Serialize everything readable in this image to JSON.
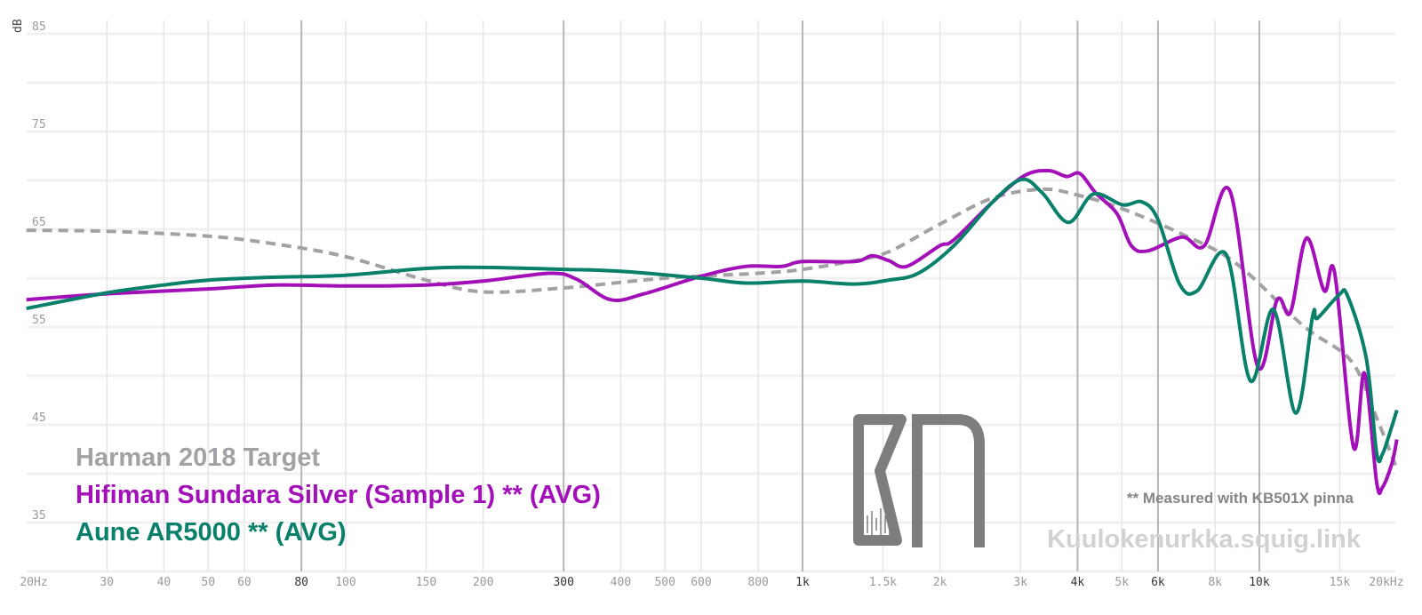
{
  "chart_data": {
    "type": "line",
    "title": "",
    "xlabel": "",
    "ylabel": "dB",
    "xscale": "log",
    "xlim": [
      20,
      20000
    ],
    "ylim": [
      30,
      85
    ],
    "grid": true,
    "y_ticks": [
      85,
      75,
      65,
      55,
      45,
      35
    ],
    "x_ticks": [
      {
        "value": 20,
        "label": "20Hz",
        "major": false
      },
      {
        "value": 30,
        "label": "30",
        "major": false
      },
      {
        "value": 40,
        "label": "40",
        "major": false
      },
      {
        "value": 50,
        "label": "50",
        "major": false
      },
      {
        "value": 60,
        "label": "60",
        "major": false
      },
      {
        "value": 80,
        "label": "80",
        "major": true
      },
      {
        "value": 100,
        "label": "100",
        "major": false
      },
      {
        "value": 150,
        "label": "150",
        "major": false
      },
      {
        "value": 200,
        "label": "200",
        "major": false
      },
      {
        "value": 300,
        "label": "300",
        "major": true
      },
      {
        "value": 400,
        "label": "400",
        "major": false
      },
      {
        "value": 500,
        "label": "500",
        "major": false
      },
      {
        "value": 600,
        "label": "600",
        "major": false
      },
      {
        "value": 800,
        "label": "800",
        "major": false
      },
      {
        "value": 1000,
        "label": "1k",
        "major": true
      },
      {
        "value": 1500,
        "label": "1.5k",
        "major": false
      },
      {
        "value": 2000,
        "label": "2k",
        "major": false
      },
      {
        "value": 3000,
        "label": "3k",
        "major": false
      },
      {
        "value": 4000,
        "label": "4k",
        "major": true
      },
      {
        "value": 5000,
        "label": "5k",
        "major": false
      },
      {
        "value": 6000,
        "label": "6k",
        "major": true
      },
      {
        "value": 8000,
        "label": "8k",
        "major": false
      },
      {
        "value": 10000,
        "label": "10k",
        "major": true
      },
      {
        "value": 15000,
        "label": "15k",
        "major": false
      },
      {
        "value": 20000,
        "label": "20kHz",
        "major": false
      }
    ],
    "legend_placement": "bottom-left",
    "series": [
      {
        "name": "Harman 2018 Target",
        "color": "#a3a1a5",
        "dashed": true,
        "points": [
          [
            20,
            64.9
          ],
          [
            30,
            64.8
          ],
          [
            50,
            64.3
          ],
          [
            70,
            63.5
          ],
          [
            100,
            62.2
          ],
          [
            150,
            59.8
          ],
          [
            200,
            58.6
          ],
          [
            300,
            59.0
          ],
          [
            500,
            60.0
          ],
          [
            800,
            60.5
          ],
          [
            1000,
            60.9
          ],
          [
            1300,
            61.8
          ],
          [
            1544,
            62.7
          ],
          [
            1994,
            65.5
          ],
          [
            2608,
            68.2
          ],
          [
            3352,
            69.1
          ],
          [
            4000,
            68.5
          ],
          [
            4950,
            67.2
          ],
          [
            6777,
            64.5
          ],
          [
            8900,
            61.5
          ],
          [
            12500,
            55.1
          ],
          [
            15900,
            51.5
          ],
          [
            18070,
            45.7
          ],
          [
            20000,
            40.5
          ]
        ]
      },
      {
        "name": "Hifiman Sundara Silver (Sample 1) ** (AVG)",
        "color": "#a30fb8",
        "dashed": false,
        "points": [
          [
            20,
            57.8
          ],
          [
            30,
            58.4
          ],
          [
            50,
            58.9
          ],
          [
            70,
            59.3
          ],
          [
            100,
            59.2
          ],
          [
            150,
            59.3
          ],
          [
            200,
            59.7
          ],
          [
            280,
            60.5
          ],
          [
            320,
            59.9
          ],
          [
            380,
            57.8
          ],
          [
            450,
            58.4
          ],
          [
            600,
            60.2
          ],
          [
            750,
            61.2
          ],
          [
            900,
            61.2
          ],
          [
            1000,
            61.7
          ],
          [
            1300,
            61.7
          ],
          [
            1420,
            62.3
          ],
          [
            1544,
            61.8
          ],
          [
            1690,
            61.2
          ],
          [
            1994,
            63.3
          ],
          [
            2142,
            63.9
          ],
          [
            2608,
            67.8
          ],
          [
            3064,
            70.5
          ],
          [
            3458,
            71.0
          ],
          [
            3784,
            70.4
          ],
          [
            4046,
            70.7
          ],
          [
            4386,
            68.7
          ],
          [
            4880,
            66.6
          ],
          [
            5250,
            63.3
          ],
          [
            5712,
            62.8
          ],
          [
            6777,
            64.2
          ],
          [
            7576,
            63.3
          ],
          [
            8626,
            68.9
          ],
          [
            9912,
            51.0
          ],
          [
            10940,
            57.8
          ],
          [
            11700,
            56.5
          ],
          [
            12680,
            64.1
          ],
          [
            13870,
            58.7
          ],
          [
            14620,
            60.5
          ],
          [
            16080,
            42.7
          ],
          [
            16980,
            50.3
          ],
          [
            18070,
            39.1
          ],
          [
            18600,
            38.6
          ],
          [
            19500,
            41.0
          ],
          [
            20000,
            43.5
          ]
        ]
      },
      {
        "name": "Aune AR5000 ** (AVG)",
        "color": "#08806a",
        "dashed": false,
        "points": [
          [
            20,
            56.9
          ],
          [
            30,
            58.5
          ],
          [
            40,
            59.3
          ],
          [
            50,
            59.8
          ],
          [
            70,
            60.1
          ],
          [
            100,
            60.3
          ],
          [
            150,
            61.0
          ],
          [
            200,
            61.1
          ],
          [
            300,
            60.9
          ],
          [
            400,
            60.7
          ],
          [
            600,
            60.0
          ],
          [
            750,
            59.5
          ],
          [
            1000,
            59.7
          ],
          [
            1300,
            59.4
          ],
          [
            1544,
            59.8
          ],
          [
            1792,
            60.5
          ],
          [
            2142,
            63.3
          ],
          [
            2608,
            67.8
          ],
          [
            3020,
            70.1
          ],
          [
            3352,
            68.7
          ],
          [
            3820,
            65.7
          ],
          [
            4330,
            68.6
          ],
          [
            5020,
            67.5
          ],
          [
            5536,
            67.8
          ],
          [
            6000,
            66.0
          ],
          [
            6690,
            59.4
          ],
          [
            7310,
            58.7
          ],
          [
            8470,
            62.4
          ],
          [
            9560,
            49.5
          ],
          [
            10740,
            56.8
          ],
          [
            12020,
            46.2
          ],
          [
            13090,
            56.2
          ],
          [
            13400,
            55.9
          ],
          [
            14960,
            58.3
          ],
          [
            15600,
            58.2
          ],
          [
            17140,
            51.8
          ],
          [
            18070,
            42.1
          ],
          [
            18600,
            42.0
          ],
          [
            19400,
            44.5
          ],
          [
            20000,
            46.5
          ]
        ]
      }
    ]
  },
  "annotations": {
    "note": "** Measured with KB501X pinna",
    "watermark": "Kuulokenurkka.squig.link",
    "logo_text": "KN"
  }
}
